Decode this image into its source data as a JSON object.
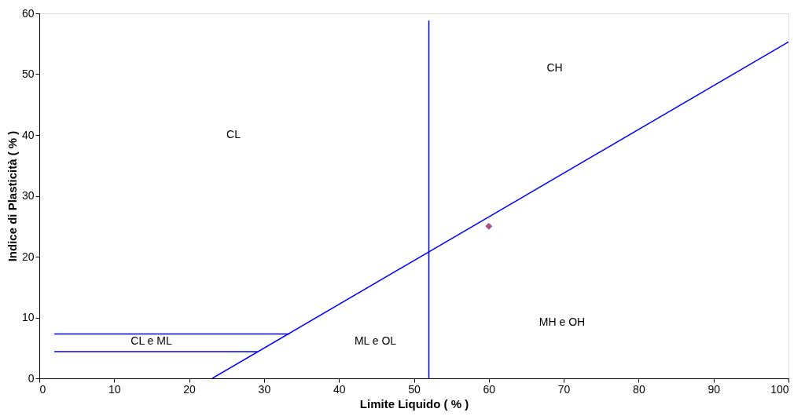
{
  "chart_data": {
    "type": "line",
    "xlabel": "Limite Liquido ( % )",
    "ylabel": "Indice di Plasticità ( % )",
    "xlim": [
      0,
      100
    ],
    "ylim": [
      0,
      60
    ],
    "xticks": [
      0,
      10,
      20,
      30,
      40,
      50,
      60,
      70,
      80,
      90,
      100
    ],
    "yticks": [
      0,
      10,
      20,
      30,
      40,
      50,
      60
    ],
    "grid": false,
    "series": [
      {
        "color": "#0000ff",
        "x": [
          23.1,
          100
        ],
        "values": [
          0,
          55.3
        ]
      },
      {
        "color": "#0000ff",
        "x": [
          52,
          52
        ],
        "values": [
          0,
          58.8
        ]
      },
      {
        "color": "#0000ff",
        "x": [
          2,
          33.4
        ],
        "values": [
          7.3,
          7.3
        ]
      },
      {
        "color": "#0000ff",
        "x": [
          2,
          29.1
        ],
        "values": [
          4.4,
          4.4
        ]
      },
      {
        "type": "scatter",
        "color": "#c00000",
        "marker": "diamond",
        "x": [
          60
        ],
        "values": [
          25
        ]
      }
    ],
    "annotations": [
      "CL",
      "CH",
      "CL e ML",
      "ML e OL",
      "MH e OH"
    ]
  }
}
